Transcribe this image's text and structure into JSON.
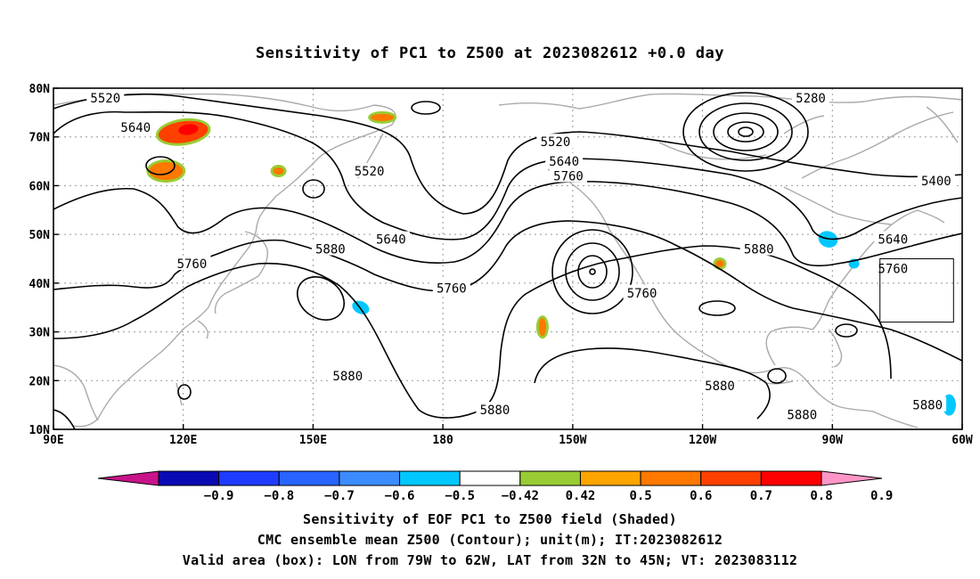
{
  "title": "Sensitivity of PC1 to Z500 at 2023082612 +0.0 day",
  "map": {
    "lon_range": [
      90,
      300
    ],
    "lat_range": [
      10,
      80
    ],
    "lat_ticks": [
      {
        "value": 80,
        "label": "80N"
      },
      {
        "value": 70,
        "label": "70N"
      },
      {
        "value": 60,
        "label": "60N"
      },
      {
        "value": 50,
        "label": "50N"
      },
      {
        "value": 40,
        "label": "40N"
      },
      {
        "value": 30,
        "label": "30N"
      },
      {
        "value": 20,
        "label": "20N"
      },
      {
        "value": 10,
        "label": "10N"
      }
    ],
    "lon_ticks": [
      {
        "value": 90,
        "label": "90E"
      },
      {
        "value": 120,
        "label": "120E"
      },
      {
        "value": 150,
        "label": "150E"
      },
      {
        "value": 180,
        "label": "180"
      },
      {
        "value": 210,
        "label": "150W"
      },
      {
        "value": 240,
        "label": "120W"
      },
      {
        "value": 270,
        "label": "90W"
      },
      {
        "value": 300,
        "label": "60W"
      }
    ],
    "valid_box": {
      "lon_min": 281,
      "lon_max": 298,
      "lat_min": 32,
      "lat_max": 45
    },
    "contour_labels": [
      {
        "text": "5520",
        "lon": 102,
        "lat": 78
      },
      {
        "text": "5640",
        "lon": 109,
        "lat": 72
      },
      {
        "text": "5520",
        "lon": 163,
        "lat": 63
      },
      {
        "text": "5640",
        "lon": 168,
        "lat": 49
      },
      {
        "text": "5760",
        "lon": 122,
        "lat": 44
      },
      {
        "text": "5880",
        "lon": 154,
        "lat": 47
      },
      {
        "text": "5760",
        "lon": 182,
        "lat": 39
      },
      {
        "text": "5880",
        "lon": 158,
        "lat": 21
      },
      {
        "text": "5880",
        "lon": 192,
        "lat": 14
      },
      {
        "text": "5520",
        "lon": 206,
        "lat": 69
      },
      {
        "text": "5640",
        "lon": 208,
        "lat": 65
      },
      {
        "text": "5760",
        "lon": 209,
        "lat": 62
      },
      {
        "text": "5760",
        "lon": 226,
        "lat": 38
      },
      {
        "text": "5880",
        "lon": 244,
        "lat": 19
      },
      {
        "text": "5880",
        "lon": 253,
        "lat": 47
      },
      {
        "text": "5280",
        "lon": 265,
        "lat": 78
      },
      {
        "text": "5400",
        "lon": 294,
        "lat": 61
      },
      {
        "text": "5640",
        "lon": 284,
        "lat": 49
      },
      {
        "text": "5760",
        "lon": 284,
        "lat": 43
      },
      {
        "text": "5880",
        "lon": 263,
        "lat": 13
      },
      {
        "text": "5880",
        "lon": 292,
        "lat": 15
      }
    ],
    "sensitivity_patches": [
      {
        "lon": 120,
        "lat": 71,
        "value": 0.7
      },
      {
        "lon": 116,
        "lat": 63,
        "value": 0.6
      },
      {
        "lon": 166,
        "lat": 74,
        "value": 0.6
      },
      {
        "lon": 142,
        "lat": 63,
        "value": 0.6
      },
      {
        "lon": 203,
        "lat": 31,
        "value": 0.6
      },
      {
        "lon": 244,
        "lat": 44,
        "value": 0.6
      },
      {
        "lon": 161,
        "lat": 35,
        "value": -0.5
      },
      {
        "lon": 269,
        "lat": 49,
        "value": -0.5
      },
      {
        "lon": 297,
        "lat": 15,
        "value": -0.5
      },
      {
        "lon": 275,
        "lat": 44,
        "value": -0.5
      }
    ]
  },
  "colorbar": {
    "colors": [
      "#c8138a",
      "#0a0ab4",
      "#1e3cff",
      "#2864ff",
      "#3c8cff",
      "#00c8ff",
      "#ffffff",
      "#99cc33",
      "#ffa500",
      "#ff7800",
      "#ff4000",
      "#ff0000",
      "#ff96c8"
    ],
    "labels": [
      "−0.9",
      "−0.8",
      "−0.7",
      "−0.6",
      "−0.5",
      "−0.42",
      "0.42",
      "0.5",
      "0.6",
      "0.7",
      "0.8",
      "0.9"
    ]
  },
  "captions": [
    "Sensitivity of EOF PC1 to Z500 field (Shaded)",
    "CMC ensemble mean Z500 (Contour); unit(m); IT:2023082612",
    "Valid area (box): LON from 79W to 62W, LAT from 32N to 45N; VT: 2023083112"
  ]
}
